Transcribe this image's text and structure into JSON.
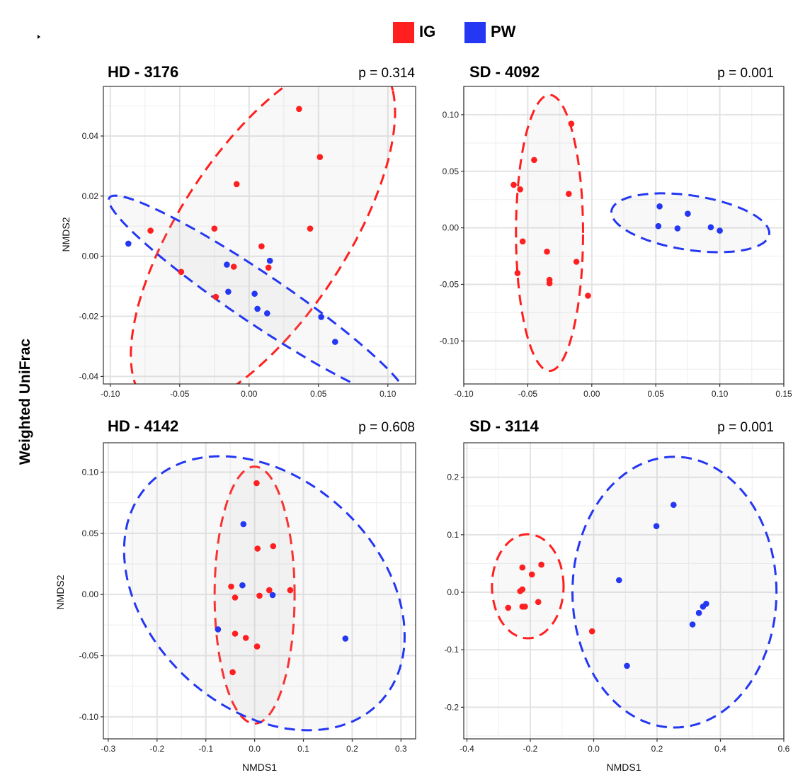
{
  "figure": {
    "ylabel": "Weighted UniFrac",
    "legend": [
      {
        "label": "IG",
        "color": "#ff1f1f"
      },
      {
        "label": "PW",
        "color": "#2437f2"
      }
    ]
  },
  "chart_data": [
    {
      "type": "scatter",
      "title": "HD - 3176",
      "pvalue": "p = 0.314",
      "xlabel": "",
      "ylabel": "NMDS2",
      "xlim": [
        -0.105,
        0.12
      ],
      "ylim": [
        -0.0425,
        0.0565
      ],
      "xticks": [
        -0.1,
        -0.05,
        0.0,
        0.05,
        0.1
      ],
      "xtick_labels": [
        "-0.10",
        "-0.05",
        "0.00",
        "0.05",
        "0.10"
      ],
      "yticks": [
        -0.04,
        -0.02,
        0.0,
        0.02,
        0.04
      ],
      "ytick_labels": [
        "-0.04",
        "-0.02",
        "0.00",
        "0.02",
        "0.04"
      ],
      "grid": true,
      "series": [
        {
          "name": "IG",
          "color": "#ff1f1f",
          "points": [
            [
              0.036,
              0.049
            ],
            [
              0.051,
              0.033
            ],
            [
              -0.009,
              0.024
            ],
            [
              -0.071,
              0.0085
            ],
            [
              -0.025,
              0.0092
            ],
            [
              0.044,
              0.0092
            ],
            [
              0.009,
              0.0033
            ],
            [
              -0.011,
              -0.0035
            ],
            [
              0.014,
              -0.0038
            ],
            [
              -0.049,
              -0.0052
            ],
            [
              -0.024,
              -0.0135
            ]
          ],
          "ellipse": {
            "cx": 0.01,
            "cy": 0.0075,
            "a": 0.105,
            "b": 0.039,
            "angle": 27
          }
        },
        {
          "name": "PW",
          "color": "#2437f2",
          "points": [
            [
              -0.087,
              0.0042
            ],
            [
              -0.016,
              -0.0028
            ],
            [
              0.015,
              -0.0015
            ],
            [
              -0.015,
              -0.0118
            ],
            [
              0.004,
              -0.0125
            ],
            [
              0.006,
              -0.0175
            ],
            [
              0.013,
              -0.019
            ],
            [
              0.052,
              -0.0202
            ],
            [
              0.062,
              -0.0285
            ]
          ],
          "ellipse": {
            "cx": 0.006,
            "cy": -0.0138,
            "a": 0.112,
            "b": 0.0095,
            "angle": -17
          }
        }
      ]
    },
    {
      "type": "scatter",
      "title": "SD - 4092",
      "pvalue": "p = 0.001",
      "xlabel": "",
      "ylabel": "",
      "xlim": [
        -0.1,
        0.15
      ],
      "ylim": [
        -0.138,
        0.125
      ],
      "xticks": [
        -0.1,
        -0.05,
        0.0,
        0.05,
        0.1,
        0.15
      ],
      "xtick_labels": [
        "-0.10",
        "-0.05",
        "0.00",
        "0.05",
        "0.10",
        "0.15"
      ],
      "yticks": [
        -0.1,
        -0.05,
        0.0,
        0.05,
        0.1
      ],
      "ytick_labels": [
        "-0.10",
        "-0.05",
        "0.00",
        "0.05",
        "0.10"
      ],
      "grid": true,
      "series": [
        {
          "name": "IG",
          "color": "#ff1f1f",
          "points": [
            [
              -0.016,
              0.092
            ],
            [
              -0.045,
              0.06
            ],
            [
              -0.061,
              0.038
            ],
            [
              -0.056,
              0.034
            ],
            [
              -0.018,
              0.03
            ],
            [
              -0.054,
              -0.012
            ],
            [
              -0.035,
              -0.021
            ],
            [
              -0.012,
              -0.03
            ],
            [
              -0.058,
              -0.04
            ],
            [
              -0.033,
              -0.046
            ],
            [
              -0.033,
              -0.049
            ],
            [
              -0.003,
              -0.06
            ]
          ],
          "ellipse": {
            "cx": -0.033,
            "cy": -0.0045,
            "a": 0.0262,
            "b": 0.122,
            "angle": 0
          }
        },
        {
          "name": "PW",
          "color": "#2437f2",
          "points": [
            [
              0.053,
              0.019
            ],
            [
              0.075,
              0.0125
            ],
            [
              0.052,
              0.0015
            ],
            [
              0.067,
              -0.0005
            ],
            [
              0.093,
              0.0005
            ],
            [
              0.1,
              -0.0025
            ]
          ],
          "ellipse": {
            "cx": 0.077,
            "cy": 0.0045,
            "a": 0.0625,
            "b": 0.024,
            "angle": -10
          }
        }
      ]
    },
    {
      "type": "scatter",
      "title": "HD - 4142",
      "pvalue": "p = 0.608",
      "xlabel": "NMDS1",
      "ylabel": "NMDS2",
      "xlim": [
        -0.31,
        0.33
      ],
      "ylim": [
        -0.118,
        0.124
      ],
      "xticks": [
        -0.3,
        -0.2,
        -0.1,
        0.0,
        0.1,
        0.2,
        0.3
      ],
      "xtick_labels": [
        "-0.3",
        "-0.2",
        "-0.1",
        "0.0",
        "0.1",
        "0.2",
        "0.3"
      ],
      "yticks": [
        -0.1,
        -0.05,
        0.0,
        0.05,
        0.1
      ],
      "ytick_labels": [
        "-0.10",
        "-0.05",
        "0.00",
        "0.05",
        "0.10"
      ],
      "grid": true,
      "series": [
        {
          "name": "IG",
          "color": "#ff1f1f",
          "points": [
            [
              0.004,
              0.091
            ],
            [
              0.038,
              0.0395
            ],
            [
              0.006,
              0.0375
            ],
            [
              -0.048,
              0.0065
            ],
            [
              -0.04,
              -0.0025
            ],
            [
              0.03,
              0.0035
            ],
            [
              0.01,
              -0.001
            ],
            [
              0.073,
              0.0035
            ],
            [
              -0.04,
              -0.032
            ],
            [
              -0.018,
              -0.0355
            ],
            [
              0.005,
              -0.0425
            ],
            [
              -0.045,
              -0.0635
            ]
          ],
          "ellipse": {
            "cx": 0.0,
            "cy": -0.0005,
            "a": 0.082,
            "b": 0.105,
            "angle": 0
          }
        },
        {
          "name": "PW",
          "color": "#2437f2",
          "points": [
            [
              -0.023,
              0.0575
            ],
            [
              -0.025,
              0.0075
            ],
            [
              0.037,
              -0.0005
            ],
            [
              -0.075,
              -0.0285
            ],
            [
              0.186,
              -0.036
            ]
          ],
          "ellipse": {
            "cx": 0.02,
            "cy": 0.001,
            "a": 0.29,
            "b": 0.1055,
            "angle": -8
          }
        }
      ]
    },
    {
      "type": "scatter",
      "title": "SD - 3114",
      "pvalue": "p = 0.001",
      "xlabel": "NMDS1",
      "ylabel": "",
      "xlim": [
        -0.41,
        0.6
      ],
      "ylim": [
        -0.255,
        0.26
      ],
      "xticks": [
        -0.4,
        -0.2,
        0.0,
        0.2,
        0.4,
        0.6
      ],
      "xtick_labels": [
        "-0.4",
        "-0.2",
        "0.0",
        "0.2",
        "0.4",
        "0.6"
      ],
      "yticks": [
        -0.2,
        -0.1,
        0.0,
        0.1,
        0.2
      ],
      "ytick_labels": [
        "-0.2",
        "-0.1",
        "0.0",
        "0.1",
        "0.2"
      ],
      "grid": true,
      "series": [
        {
          "name": "IG",
          "color": "#ff1f1f",
          "points": [
            [
              -0.165,
              0.048
            ],
            [
              -0.225,
              0.043
            ],
            [
              -0.195,
              0.031
            ],
            [
              -0.225,
              0.005
            ],
            [
              -0.232,
              0.002
            ],
            [
              -0.175,
              -0.017
            ],
            [
              -0.225,
              -0.025
            ],
            [
              -0.217,
              -0.025
            ],
            [
              -0.27,
              -0.027
            ],
            [
              -0.005,
              -0.068
            ]
          ],
          "ellipse": {
            "cx": -0.208,
            "cy": 0.0105,
            "a": 0.113,
            "b": 0.0905,
            "angle": 0
          }
        },
        {
          "name": "PW",
          "color": "#2437f2",
          "points": [
            [
              0.252,
              0.152
            ],
            [
              0.198,
              0.115
            ],
            [
              0.08,
              0.021
            ],
            [
              0.355,
              -0.02
            ],
            [
              0.345,
              -0.025
            ],
            [
              0.332,
              -0.036
            ],
            [
              0.312,
              -0.056
            ],
            [
              0.105,
              -0.128
            ]
          ],
          "ellipse": {
            "cx": 0.255,
            "cy": 0.0002,
            "a": 0.322,
            "b": 0.2355,
            "angle": 0
          }
        }
      ]
    }
  ]
}
